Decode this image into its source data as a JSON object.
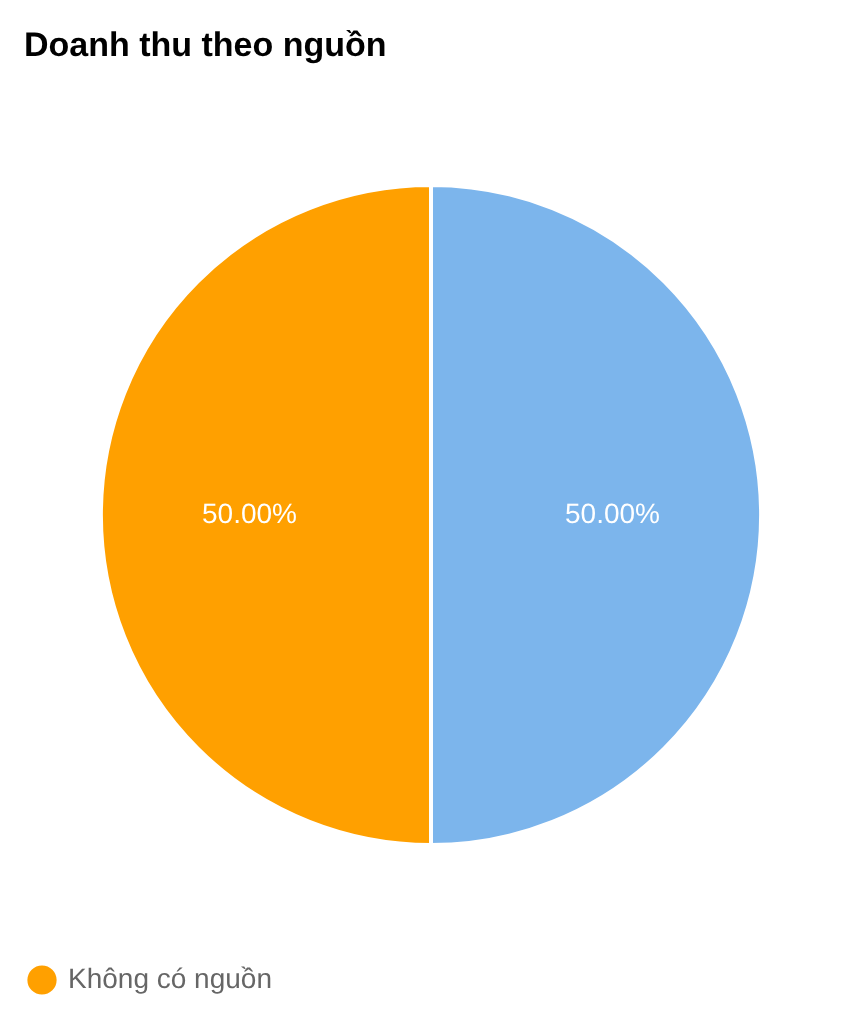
{
  "chart_data": {
    "type": "pie",
    "title": "Doanh thu theo nguồn",
    "categories": [
      null,
      "Không có nguồn"
    ],
    "values": [
      50,
      50
    ],
    "colors": [
      "#7cb5ec",
      "#ffa000"
    ],
    "value_labels": [
      "50.00%",
      "50.00%"
    ],
    "legend": "bottom"
  }
}
